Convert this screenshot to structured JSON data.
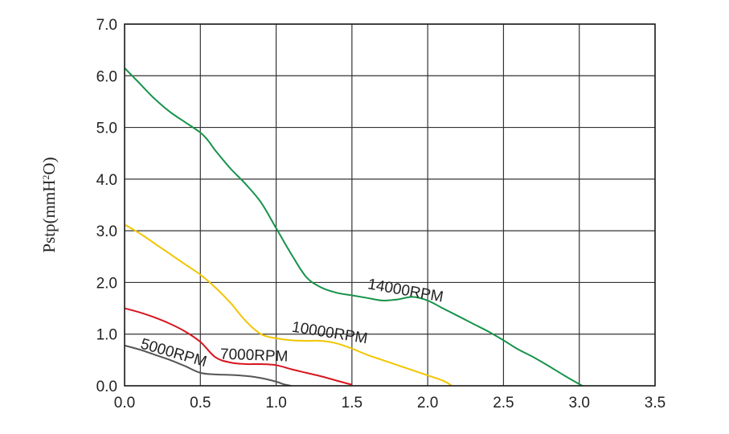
{
  "chart_data": {
    "type": "line",
    "title": "",
    "xlabel": "",
    "ylabel": "Pstp(mmH",
    "ylabel_sup": "2",
    "ylabel_tail": "O)",
    "xlim": [
      0,
      3.5
    ],
    "ylim": [
      0,
      7
    ],
    "grid": true,
    "x_ticks": [
      "0.0",
      "0.5",
      "1.0",
      "1.5",
      "2.0",
      "2.5",
      "3.0",
      "3.5"
    ],
    "y_ticks": [
      "0.0",
      "1.0",
      "2.0",
      "3.0",
      "4.0",
      "5.0",
      "6.0",
      "7.0"
    ],
    "series": [
      {
        "name": "14000RPM",
        "color": "#16934a",
        "points": [
          [
            0.0,
            6.15
          ],
          [
            0.1,
            5.85
          ],
          [
            0.2,
            5.55
          ],
          [
            0.3,
            5.3
          ],
          [
            0.4,
            5.1
          ],
          [
            0.5,
            4.9
          ],
          [
            0.55,
            4.75
          ],
          [
            0.6,
            4.55
          ],
          [
            0.7,
            4.2
          ],
          [
            0.8,
            3.9
          ],
          [
            0.9,
            3.55
          ],
          [
            1.0,
            3.05
          ],
          [
            1.1,
            2.55
          ],
          [
            1.2,
            2.1
          ],
          [
            1.3,
            1.9
          ],
          [
            1.4,
            1.8
          ],
          [
            1.5,
            1.75
          ],
          [
            1.6,
            1.7
          ],
          [
            1.7,
            1.65
          ],
          [
            1.8,
            1.67
          ],
          [
            1.9,
            1.72
          ],
          [
            2.0,
            1.65
          ],
          [
            2.1,
            1.5
          ],
          [
            2.2,
            1.35
          ],
          [
            2.3,
            1.2
          ],
          [
            2.4,
            1.05
          ],
          [
            2.5,
            0.88
          ],
          [
            2.6,
            0.7
          ],
          [
            2.7,
            0.55
          ],
          [
            2.8,
            0.38
          ],
          [
            2.9,
            0.2
          ],
          [
            3.02,
            0.0
          ]
        ]
      },
      {
        "name": "10000RPM",
        "color": "#f2c500",
        "points": [
          [
            0.0,
            3.12
          ],
          [
            0.1,
            2.95
          ],
          [
            0.2,
            2.75
          ],
          [
            0.3,
            2.55
          ],
          [
            0.4,
            2.35
          ],
          [
            0.5,
            2.15
          ],
          [
            0.6,
            1.9
          ],
          [
            0.7,
            1.6
          ],
          [
            0.8,
            1.25
          ],
          [
            0.9,
            1.0
          ],
          [
            1.0,
            0.92
          ],
          [
            1.1,
            0.88
          ],
          [
            1.2,
            0.87
          ],
          [
            1.3,
            0.87
          ],
          [
            1.4,
            0.82
          ],
          [
            1.5,
            0.72
          ],
          [
            1.6,
            0.6
          ],
          [
            1.7,
            0.5
          ],
          [
            1.8,
            0.4
          ],
          [
            1.9,
            0.3
          ],
          [
            2.0,
            0.2
          ],
          [
            2.1,
            0.1
          ],
          [
            2.16,
            0.0
          ]
        ]
      },
      {
        "name": "7000RPM",
        "color": "#d8141e",
        "points": [
          [
            0.0,
            1.5
          ],
          [
            0.1,
            1.42
          ],
          [
            0.2,
            1.32
          ],
          [
            0.3,
            1.2
          ],
          [
            0.4,
            1.05
          ],
          [
            0.5,
            0.85
          ],
          [
            0.6,
            0.55
          ],
          [
            0.7,
            0.45
          ],
          [
            0.8,
            0.42
          ],
          [
            0.9,
            0.42
          ],
          [
            1.0,
            0.4
          ],
          [
            1.1,
            0.32
          ],
          [
            1.2,
            0.25
          ],
          [
            1.3,
            0.18
          ],
          [
            1.4,
            0.1
          ],
          [
            1.5,
            0.02
          ]
        ]
      },
      {
        "name": "5000RPM",
        "color": "#555555",
        "points": [
          [
            0.0,
            0.78
          ],
          [
            0.1,
            0.7
          ],
          [
            0.2,
            0.6
          ],
          [
            0.3,
            0.5
          ],
          [
            0.4,
            0.38
          ],
          [
            0.5,
            0.25
          ],
          [
            0.6,
            0.22
          ],
          [
            0.7,
            0.21
          ],
          [
            0.8,
            0.19
          ],
          [
            0.9,
            0.15
          ],
          [
            1.0,
            0.08
          ],
          [
            1.05,
            0.03
          ],
          [
            1.1,
            0.0
          ]
        ]
      }
    ]
  }
}
